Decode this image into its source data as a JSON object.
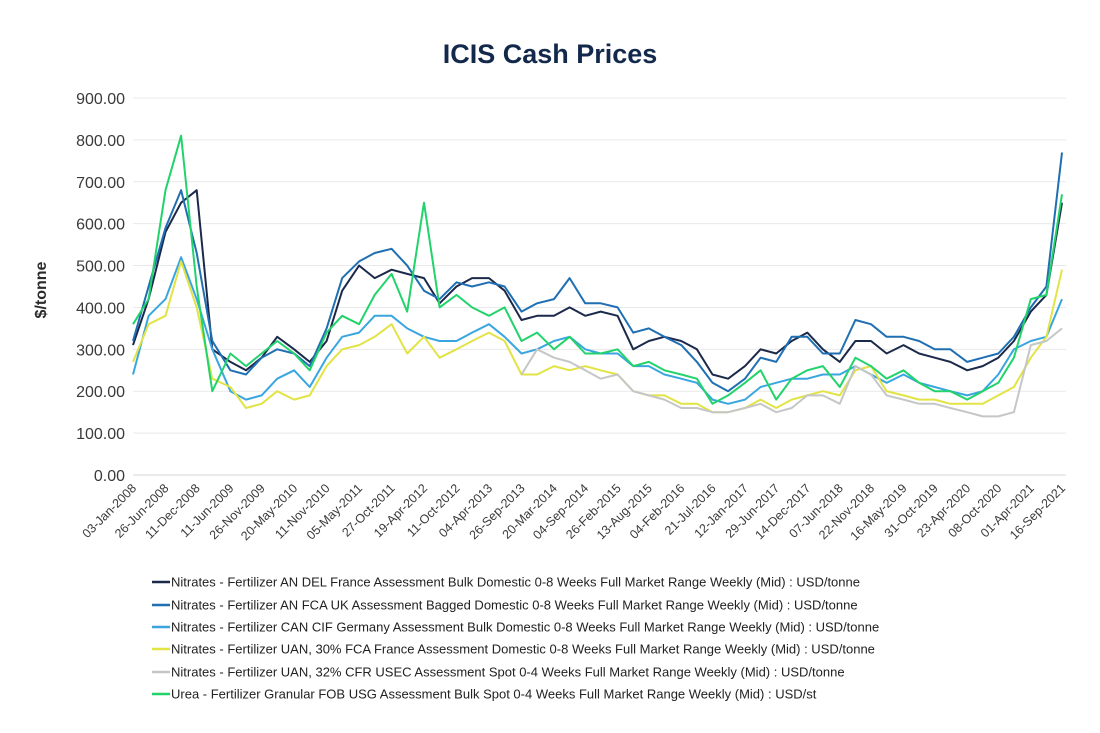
{
  "chart_data": {
    "type": "line",
    "title": "ICIS Cash Prices",
    "xlabel": "",
    "ylabel": "$/tonne",
    "ylim": [
      0,
      900
    ],
    "yticks": [
      "0.00",
      "100.00",
      "200.00",
      "300.00",
      "400.00",
      "500.00",
      "600.00",
      "700.00",
      "800.00",
      "900.00"
    ],
    "grid": true,
    "legend_position": "bottom",
    "xtick_labels": [
      "03-Jan-2008",
      "26-Jun-2008",
      "11-Dec-2008",
      "11-Jun-2009",
      "26-Nov-2009",
      "20-May-2010",
      "11-Nov-2010",
      "05-May-2011",
      "27-Oct-2011",
      "19-Apr-2012",
      "11-Oct-2012",
      "04-Apr-2013",
      "26-Sep-2013",
      "20-Mar-2014",
      "04-Sep-2014",
      "26-Feb-2015",
      "13-Aug-2015",
      "04-Feb-2016",
      "21-Jul-2016",
      "12-Jan-2017",
      "29-Jun-2017",
      "14-Dec-2017",
      "07-Jun-2018",
      "22-Nov-2018",
      "16-May-2019",
      "31-Oct-2019",
      "23-Apr-2020",
      "08-Oct-2020",
      "01-Apr-2021",
      "16-Sep-2021"
    ],
    "xtick_dates": [
      "2008-01-03",
      "2008-06-26",
      "2008-12-11",
      "2009-06-11",
      "2009-11-26",
      "2010-05-20",
      "2010-11-11",
      "2011-05-05",
      "2011-10-27",
      "2012-04-19",
      "2012-10-11",
      "2013-04-04",
      "2013-09-26",
      "2014-03-20",
      "2014-09-04",
      "2015-02-26",
      "2015-08-13",
      "2016-02-04",
      "2016-07-21",
      "2017-01-12",
      "2017-06-29",
      "2017-12-14",
      "2018-06-07",
      "2018-11-22",
      "2019-05-16",
      "2019-10-31",
      "2020-04-23",
      "2020-10-08",
      "2021-04-01",
      "2021-09-16"
    ],
    "x": [
      "2008-01-03",
      "2008-03-27",
      "2008-06-26",
      "2008-09-18",
      "2008-12-11",
      "2009-03-05",
      "2009-06-11",
      "2009-09-03",
      "2009-11-26",
      "2010-02-18",
      "2010-05-20",
      "2010-08-12",
      "2010-11-11",
      "2011-02-03",
      "2011-05-05",
      "2011-07-28",
      "2011-10-27",
      "2012-01-19",
      "2012-04-19",
      "2012-07-12",
      "2012-10-11",
      "2013-01-03",
      "2013-04-04",
      "2013-06-27",
      "2013-09-26",
      "2013-12-19",
      "2014-03-20",
      "2014-06-12",
      "2014-09-04",
      "2014-11-27",
      "2015-02-26",
      "2015-05-21",
      "2015-08-13",
      "2015-11-05",
      "2016-02-04",
      "2016-04-28",
      "2016-07-21",
      "2016-10-13",
      "2017-01-12",
      "2017-04-06",
      "2017-06-29",
      "2017-09-21",
      "2017-12-14",
      "2018-03-08",
      "2018-06-07",
      "2018-08-30",
      "2018-11-22",
      "2019-02-14",
      "2019-05-16",
      "2019-08-08",
      "2019-10-31",
      "2020-01-23",
      "2020-04-23",
      "2020-07-16",
      "2020-10-08",
      "2020-12-31",
      "2021-04-01",
      "2021-06-24",
      "2021-09-16"
    ],
    "series": [
      {
        "name": "Nitrates - Fertilizer AN DEL France Assessment Bulk Domestic 0-8 Weeks Full Market Range Weekly (Mid) : USD/tonne",
        "color": "#1b2a4a",
        "values": [
          310,
          420,
          580,
          650,
          680,
          300,
          270,
          250,
          280,
          330,
          300,
          270,
          320,
          440,
          500,
          470,
          490,
          480,
          470,
          410,
          450,
          470,
          470,
          440,
          370,
          380,
          380,
          400,
          380,
          390,
          380,
          300,
          320,
          330,
          320,
          300,
          240,
          230,
          260,
          300,
          290,
          320,
          340,
          300,
          270,
          320,
          320,
          290,
          310,
          290,
          280,
          270,
          250,
          260,
          280,
          320,
          390,
          430,
          650
        ]
      },
      {
        "name": "Nitrates - Fertilizer AN FCA UK Assessment Bagged Domestic 0-8 Weeks Full Market Range Weekly (Mid) : USD/tonne",
        "color": "#1f6fb2",
        "values": [
          320,
          450,
          590,
          680,
          530,
          320,
          250,
          240,
          280,
          300,
          290,
          260,
          350,
          470,
          510,
          530,
          540,
          500,
          440,
          420,
          460,
          450,
          460,
          450,
          390,
          410,
          420,
          470,
          410,
          410,
          400,
          340,
          350,
          330,
          310,
          270,
          220,
          200,
          230,
          280,
          270,
          330,
          330,
          290,
          290,
          370,
          360,
          330,
          330,
          320,
          300,
          300,
          270,
          280,
          290,
          330,
          400,
          450,
          770
        ]
      },
      {
        "name": "Nitrates - Fertilizer CAN CIF Germany Assessment Bulk Domestic 0-8 Weeks Full Market Range Weekly (Mid) : USD/tonne",
        "color": "#3aa6df",
        "values": [
          240,
          380,
          420,
          520,
          420,
          300,
          200,
          180,
          190,
          230,
          250,
          210,
          280,
          330,
          340,
          380,
          380,
          350,
          330,
          320,
          320,
          340,
          360,
          330,
          290,
          300,
          320,
          330,
          300,
          290,
          290,
          260,
          260,
          240,
          230,
          220,
          180,
          170,
          180,
          210,
          220,
          230,
          230,
          240,
          240,
          260,
          240,
          220,
          240,
          220,
          210,
          200,
          190,
          200,
          240,
          300,
          320,
          330,
          420
        ]
      },
      {
        "name": "Nitrates - Fertilizer UAN, 30% FCA France Assessment Domestic 0-8 Weeks Full Market Range Weekly (Mid) : USD/tonne",
        "color": "#e2e345",
        "values": [
          270,
          360,
          380,
          510,
          400,
          230,
          210,
          160,
          170,
          200,
          180,
          190,
          260,
          300,
          310,
          330,
          360,
          290,
          330,
          280,
          300,
          320,
          340,
          320,
          240,
          240,
          260,
          250,
          260,
          250,
          240,
          200,
          190,
          190,
          170,
          170,
          150,
          150,
          160,
          180,
          160,
          180,
          190,
          200,
          190,
          250,
          260,
          200,
          190,
          180,
          180,
          170,
          170,
          170,
          190,
          210,
          280,
          330,
          490
        ]
      },
      {
        "name": "Nitrates - Fertilizer UAN, 32% CFR USEC Assessment Spot 0-4 Weeks Full Market Range Weekly (Mid) : USD/tonne",
        "color": "#c4c6c8",
        "values": [
          null,
          null,
          null,
          null,
          null,
          null,
          null,
          null,
          null,
          null,
          null,
          null,
          null,
          null,
          null,
          null,
          null,
          null,
          null,
          null,
          null,
          null,
          null,
          null,
          240,
          300,
          280,
          270,
          250,
          230,
          240,
          200,
          190,
          180,
          160,
          160,
          150,
          150,
          160,
          170,
          150,
          160,
          190,
          190,
          170,
          260,
          240,
          190,
          180,
          170,
          170,
          160,
          150,
          140,
          140,
          150,
          310,
          320,
          350
        ]
      },
      {
        "name": "Urea - Fertilizer Granular FOB USG Assessment Bulk Spot 0-4 Weeks Full Market Range Weekly (Mid) : USD/st",
        "color": "#22d36b",
        "values": [
          360,
          420,
          680,
          810,
          450,
          200,
          290,
          260,
          290,
          320,
          290,
          250,
          340,
          380,
          360,
          430,
          480,
          390,
          650,
          400,
          430,
          400,
          380,
          400,
          320,
          340,
          300,
          330,
          290,
          290,
          300,
          260,
          270,
          250,
          240,
          230,
          170,
          190,
          220,
          250,
          180,
          230,
          250,
          260,
          210,
          280,
          260,
          230,
          250,
          220,
          200,
          200,
          180,
          200,
          220,
          280,
          420,
          430,
          670
        ]
      }
    ]
  }
}
